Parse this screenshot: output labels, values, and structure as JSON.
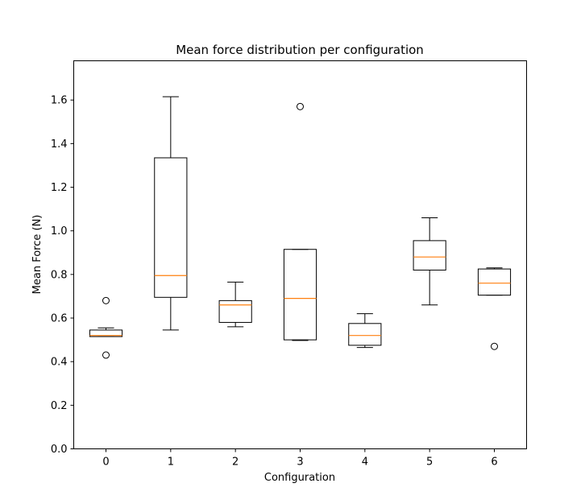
{
  "chart_data": {
    "type": "boxplot",
    "title": "Mean force distribution per configuration",
    "xlabel": "Configuration",
    "ylabel": "Mean Force (N)",
    "ylim": [
      0,
      1.78
    ],
    "yticks": [
      "0.0",
      "0.2",
      "0.4",
      "0.6",
      "0.8",
      "1.0",
      "1.2",
      "1.4",
      "1.6"
    ],
    "grid": false,
    "colors": {
      "box": "#000000",
      "median": "#ff7f0e"
    },
    "categories": [
      "0",
      "1",
      "2",
      "3",
      "4",
      "5",
      "6"
    ],
    "boxes": [
      {
        "whisker_low": 0.515,
        "q1": 0.515,
        "median": 0.52,
        "q3": 0.545,
        "whisker_high": 0.555,
        "outliers": [
          0.68,
          0.43
        ]
      },
      {
        "whisker_low": 0.545,
        "q1": 0.695,
        "median": 0.795,
        "q3": 1.335,
        "whisker_high": 1.615,
        "outliers": []
      },
      {
        "whisker_low": 0.56,
        "q1": 0.58,
        "median": 0.66,
        "q3": 0.68,
        "whisker_high": 0.765,
        "outliers": []
      },
      {
        "whisker_low": 0.497,
        "q1": 0.5,
        "median": 0.69,
        "q3": 0.915,
        "whisker_high": 0.915,
        "outliers": [
          1.57
        ]
      },
      {
        "whisker_low": 0.465,
        "q1": 0.475,
        "median": 0.52,
        "q3": 0.575,
        "whisker_high": 0.62,
        "outliers": []
      },
      {
        "whisker_low": 0.66,
        "q1": 0.82,
        "median": 0.88,
        "q3": 0.955,
        "whisker_high": 1.06,
        "outliers": []
      },
      {
        "whisker_low": 0.705,
        "q1": 0.705,
        "median": 0.76,
        "q3": 0.825,
        "whisker_high": 0.83,
        "outliers": [
          0.47
        ]
      }
    ]
  }
}
